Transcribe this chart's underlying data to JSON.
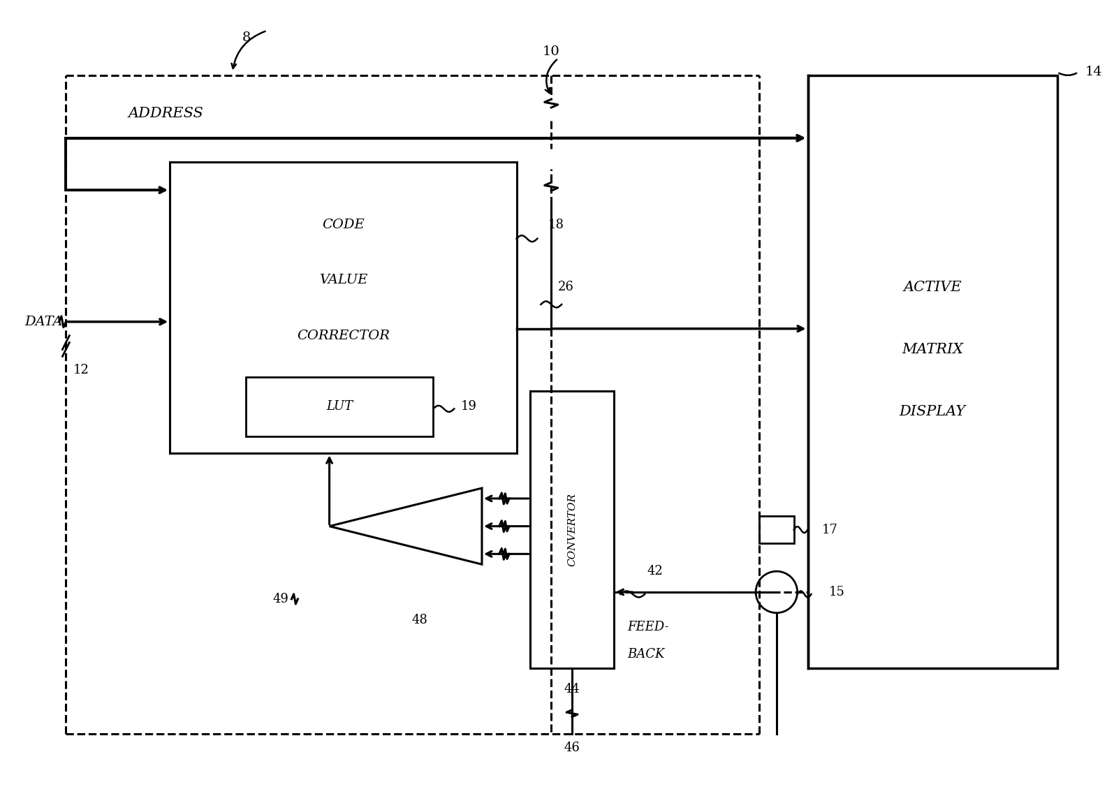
{
  "bg_color": "#ffffff",
  "lc": "#000000",
  "fig_width": 15.85,
  "fig_height": 11.4,
  "dpi": 100,
  "xlim": [
    0,
    158.5
  ],
  "ylim": [
    0,
    114
  ],
  "labels": {
    "ref8": "8",
    "ref10": "10",
    "ref14": "14",
    "address": "ADDRESS",
    "data": "DATA",
    "num12": "12",
    "num18": "18",
    "num26": "26",
    "num19": "19",
    "num42": "42",
    "num44": "44",
    "num46": "46",
    "num48": "48",
    "num49": "49",
    "num15": "15",
    "num17": "17",
    "feed": "FEED-",
    "back": "BACK",
    "code": "CODE",
    "value": "VALUE",
    "corrector": "CORRECTOR",
    "lut": "LUT",
    "conv": "CONVERTOR",
    "active": "ACTIVE",
    "matrix": "MATRIX",
    "display": "DISPLAY"
  }
}
